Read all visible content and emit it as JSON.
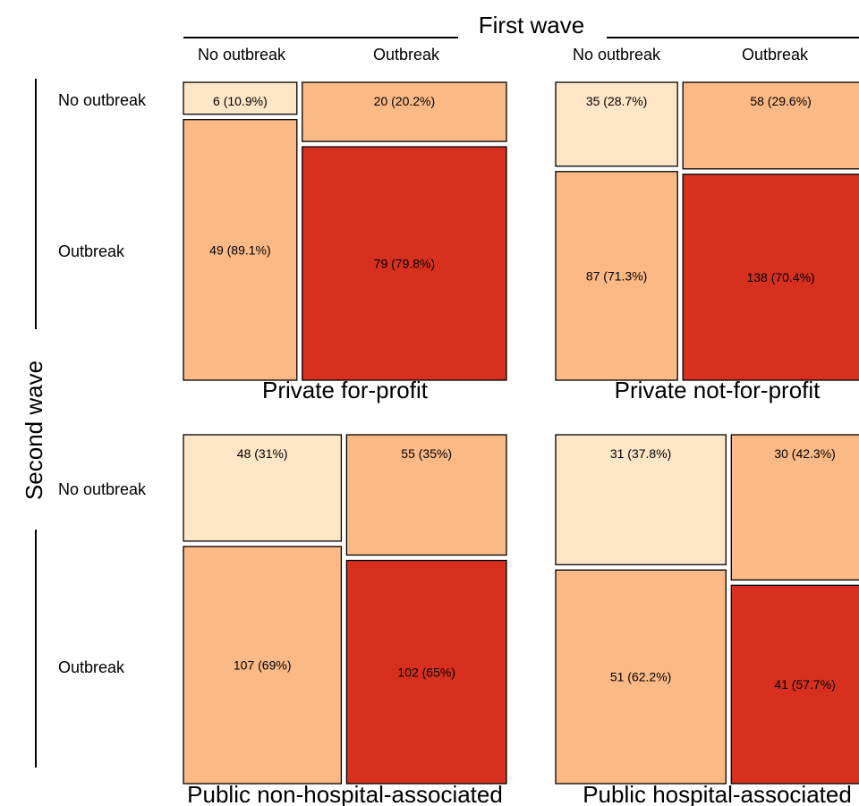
{
  "chart_data": {
    "type": "mosaic",
    "x_title": "First wave",
    "y_title": "Second wave",
    "x_categories": [
      "No outbreak",
      "Outbreak"
    ],
    "y_categories": [
      "No outbreak",
      "Outbreak"
    ],
    "colors": {
      "no_no": "#fee6c6",
      "mixed": "#fbb985",
      "out_out": "#d7301f"
    },
    "panels": [
      {
        "name": "Private for-profit",
        "cells": [
          {
            "first": "No outbreak",
            "second": "No outbreak",
            "count": 6,
            "label": "6 (10.9%)"
          },
          {
            "first": "No outbreak",
            "second": "Outbreak",
            "count": 49,
            "label": "49 (89.1%)"
          },
          {
            "first": "Outbreak",
            "second": "No outbreak",
            "count": 20,
            "label": "20 (20.2%)"
          },
          {
            "first": "Outbreak",
            "second": "Outbreak",
            "count": 79,
            "label": "79 (79.8%)"
          }
        ]
      },
      {
        "name": "Private not-for-profit",
        "cells": [
          {
            "first": "No outbreak",
            "second": "No outbreak",
            "count": 35,
            "label": "35 (28.7%)"
          },
          {
            "first": "No outbreak",
            "second": "Outbreak",
            "count": 87,
            "label": "87 (71.3%)"
          },
          {
            "first": "Outbreak",
            "second": "No outbreak",
            "count": 58,
            "label": "58 (29.6%)"
          },
          {
            "first": "Outbreak",
            "second": "Outbreak",
            "count": 138,
            "label": "138 (70.4%)"
          }
        ]
      },
      {
        "name": "Public non-hospital-associated",
        "cells": [
          {
            "first": "No outbreak",
            "second": "No outbreak",
            "count": 48,
            "label": "48 (31%)"
          },
          {
            "first": "No outbreak",
            "second": "Outbreak",
            "count": 107,
            "label": "107 (69%)"
          },
          {
            "first": "Outbreak",
            "second": "No outbreak",
            "count": 55,
            "label": "55 (35%)"
          },
          {
            "first": "Outbreak",
            "second": "Outbreak",
            "count": 102,
            "label": "102 (65%)"
          }
        ]
      },
      {
        "name": "Public hospital-associated",
        "cells": [
          {
            "first": "No outbreak",
            "second": "No outbreak",
            "count": 31,
            "label": "31 (37.8%)"
          },
          {
            "first": "No outbreak",
            "second": "Outbreak",
            "count": 51,
            "label": "51 (62.2%)"
          },
          {
            "first": "Outbreak",
            "second": "No outbreak",
            "count": 30,
            "label": "30 (42.3%)"
          },
          {
            "first": "Outbreak",
            "second": "Outbreak",
            "count": 41,
            "label": "41 (57.7%)"
          }
        ]
      }
    ]
  }
}
